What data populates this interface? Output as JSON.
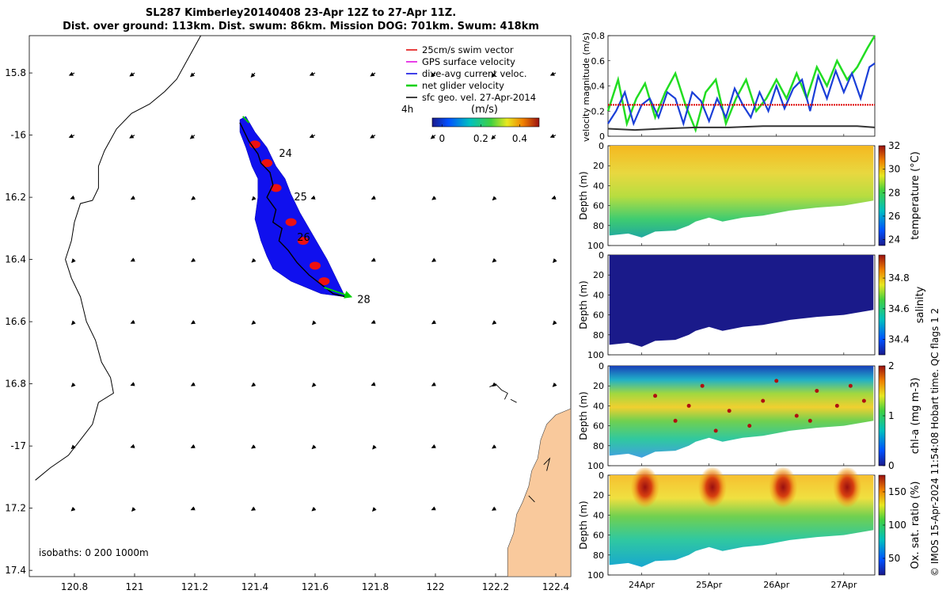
{
  "title": {
    "line1": "SL287 Kimberley20140408 23-Apr 12Z to 27-Apr 11Z.",
    "line2": "Dist. over ground: 113km. Dist. swum: 86km. Mission DOG: 701km. Swum: 418km"
  },
  "footer_vertical": "© IMOS 15-Apr-2024 11:54:08 Hobart time. QC flags 1 2",
  "chart_data": [
    {
      "type": "map",
      "name": "glider-track-map",
      "xlim": [
        120.65,
        122.45
      ],
      "ylim": [
        -17.42,
        -15.68
      ],
      "xticks": [
        120.8,
        121,
        121.2,
        121.4,
        121.6,
        121.8,
        122,
        122.2,
        122.4
      ],
      "xtick_labels": [
        "120.8",
        "121",
        "121.2",
        "121.4",
        "121.6",
        "121.8",
        "122",
        "122.2",
        "122.4"
      ],
      "yticks": [
        -15.8,
        -16,
        -16.2,
        -16.4,
        -16.6,
        -16.8,
        -17,
        -17.2,
        -17.4
      ],
      "ytick_labels": [
        "15.8",
        "-16",
        "16.2",
        "16.4",
        "16.6",
        "16.8",
        "-17",
        "17.2",
        "17.4"
      ],
      "legend": [
        {
          "label": "25cm/s swim vector",
          "color": "#e00000"
        },
        {
          "label": "GPS surface velocity",
          "color": "#e000e0"
        },
        {
          "label": "dive-avg current veloc.",
          "color": "#0000e0"
        },
        {
          "label": "net glider velocity",
          "color": "#00d000"
        },
        {
          "label": "sfc geo. vel. 27-Apr-2014",
          "color": "#000000"
        }
      ],
      "interval_label": "4h",
      "colorbar": {
        "label": "(m/s)",
        "ticks": [
          "0",
          "0.2",
          "0.4"
        ],
        "range": [
          -0.05,
          0.5
        ]
      },
      "track": [
        [
          121.35,
          -15.96
        ],
        [
          121.38,
          -16.02
        ],
        [
          121.41,
          -16.06
        ],
        [
          121.42,
          -16.09
        ],
        [
          121.45,
          -16.12
        ],
        [
          121.46,
          -16.16
        ],
        [
          121.44,
          -16.2
        ],
        [
          121.47,
          -16.24
        ],
        [
          121.46,
          -16.28
        ],
        [
          121.49,
          -16.3
        ],
        [
          121.48,
          -16.34
        ],
        [
          121.51,
          -16.37
        ],
        [
          121.54,
          -16.41
        ],
        [
          121.58,
          -16.45
        ],
        [
          121.62,
          -16.48
        ],
        [
          121.66,
          -16.51
        ],
        [
          121.7,
          -16.52
        ]
      ],
      "day_labels": [
        {
          "label": "24",
          "lon": 121.48,
          "lat": -16.07
        },
        {
          "label": "25",
          "lon": 121.53,
          "lat": -16.21
        },
        {
          "label": "26",
          "lon": 121.54,
          "lat": -16.34
        },
        {
          "label": "28",
          "lon": 121.74,
          "lat": -16.54
        }
      ],
      "coastline": [
        [
          120.67,
          -17.11
        ],
        [
          120.72,
          -17.07
        ],
        [
          120.78,
          -17.03
        ],
        [
          120.82,
          -16.98
        ],
        [
          120.86,
          -16.93
        ],
        [
          120.88,
          -16.86
        ],
        [
          120.93,
          -16.83
        ],
        [
          120.92,
          -16.78
        ],
        [
          120.89,
          -16.73
        ],
        [
          120.87,
          -16.66
        ],
        [
          120.84,
          -16.6
        ],
        [
          120.82,
          -16.52
        ],
        [
          120.79,
          -16.46
        ],
        [
          120.77,
          -16.4
        ],
        [
          120.79,
          -16.34
        ],
        [
          120.8,
          -16.28
        ],
        [
          120.82,
          -16.22
        ],
        [
          120.86,
          -16.21
        ],
        [
          120.88,
          -16.17
        ],
        [
          120.88,
          -16.1
        ],
        [
          120.9,
          -16.05
        ],
        [
          120.94,
          -15.98
        ],
        [
          120.99,
          -15.93
        ],
        [
          121.05,
          -15.9
        ],
        [
          121.1,
          -15.86
        ],
        [
          121.14,
          -15.82
        ],
        [
          121.18,
          -15.75
        ],
        [
          121.22,
          -15.68
        ]
      ],
      "isobath_label": "isobaths: 0   200  1000m"
    },
    {
      "type": "line",
      "name": "velocity-magnitude",
      "ylabel": "velocity magnitude (m/s)",
      "ylim": [
        0,
        0.8
      ],
      "yticks": [
        0,
        0.2,
        0.4,
        0.6,
        0.8
      ],
      "ytick_labels": [
        "0",
        "0.2",
        "0.4",
        "0.6",
        "0.8"
      ],
      "x_days": [
        23.5,
        27.46
      ],
      "series": [
        {
          "name": "net glider velocity",
          "color": "#22dd22",
          "t": [
            23.5,
            23.65,
            23.78,
            23.92,
            24.05,
            24.2,
            24.35,
            24.5,
            24.65,
            24.8,
            24.95,
            25.1,
            25.25,
            25.4,
            25.55,
            25.7,
            25.85,
            26.0,
            26.15,
            26.3,
            26.45,
            26.6,
            26.75,
            26.9,
            27.05,
            27.2,
            27.35,
            27.46
          ],
          "v": [
            0.2,
            0.45,
            0.1,
            0.3,
            0.42,
            0.15,
            0.35,
            0.5,
            0.25,
            0.05,
            0.35,
            0.45,
            0.1,
            0.3,
            0.45,
            0.2,
            0.3,
            0.45,
            0.3,
            0.5,
            0.3,
            0.55,
            0.4,
            0.6,
            0.45,
            0.55,
            0.7,
            0.8
          ]
        },
        {
          "name": "dive-avg current veloc.",
          "color": "#1a3fd8",
          "t": [
            23.5,
            23.62,
            23.75,
            23.88,
            24.0,
            24.12,
            24.25,
            24.38,
            24.5,
            24.62,
            24.75,
            24.88,
            25.0,
            25.12,
            25.25,
            25.38,
            25.5,
            25.62,
            25.75,
            25.88,
            26.0,
            26.12,
            26.25,
            26.38,
            26.5,
            26.62,
            26.75,
            26.88,
            27.0,
            27.12,
            27.25,
            27.38,
            27.46
          ],
          "v": [
            0.1,
            0.2,
            0.35,
            0.1,
            0.25,
            0.3,
            0.15,
            0.35,
            0.3,
            0.1,
            0.35,
            0.28,
            0.12,
            0.3,
            0.15,
            0.38,
            0.25,
            0.15,
            0.35,
            0.2,
            0.4,
            0.22,
            0.38,
            0.45,
            0.2,
            0.48,
            0.3,
            0.52,
            0.35,
            0.5,
            0.3,
            0.55,
            0.58
          ]
        },
        {
          "name": "25cm/s swim vector",
          "color": "#dd0000",
          "t": [
            23.5,
            27.46
          ],
          "v": [
            0.25,
            0.25
          ]
        },
        {
          "name": "sfc geo. vel.",
          "color": "#333333",
          "t": [
            23.5,
            23.9,
            24.3,
            24.8,
            25.3,
            25.8,
            26.3,
            26.8,
            27.2,
            27.46
          ],
          "v": [
            0.06,
            0.05,
            0.06,
            0.07,
            0.07,
            0.08,
            0.08,
            0.08,
            0.08,
            0.07
          ]
        }
      ]
    },
    {
      "type": "heatmap",
      "name": "temperature-section",
      "ylabel": "Depth (m)",
      "yticks": [
        0,
        20,
        40,
        60,
        80,
        100
      ],
      "ytick_labels": [
        "0",
        "20",
        "40",
        "60",
        "80",
        "100"
      ],
      "colorbar_label": "temperature (°C)",
      "colorbar_ticks": [
        "24",
        "26",
        "28",
        "30",
        "32"
      ],
      "range": [
        23.5,
        32
      ]
    },
    {
      "type": "heatmap",
      "name": "salinity-section",
      "ylabel": "Depth (m)",
      "yticks": [
        0,
        20,
        40,
        60,
        80,
        100
      ],
      "ytick_labels": [
        "0",
        "20",
        "40",
        "60",
        "80",
        "100"
      ],
      "colorbar_label": "salinity",
      "colorbar_ticks": [
        "34.4",
        "34.6",
        "34.8"
      ],
      "range": [
        34.3,
        34.95
      ]
    },
    {
      "type": "heatmap",
      "name": "chlorophyll-section",
      "ylabel": "Depth (m)",
      "yticks": [
        0,
        20,
        40,
        60,
        80,
        100
      ],
      "ytick_labels": [
        "0",
        "20",
        "40",
        "60",
        "80",
        "100"
      ],
      "colorbar_label": "chl-a (mg m-3)",
      "colorbar_ticks": [
        "0",
        "1",
        "2"
      ],
      "range": [
        0,
        2
      ]
    },
    {
      "type": "heatmap",
      "name": "oxygen-section",
      "ylabel": "Depth (m)",
      "yticks": [
        0,
        20,
        40,
        60,
        80,
        100
      ],
      "ytick_labels": [
        "0",
        "20",
        "40",
        "60",
        "80",
        "100"
      ],
      "colorbar_label": "Ox. sat. ratio (%)",
      "colorbar_ticks": [
        "50",
        "100",
        "150"
      ],
      "range": [
        25,
        175
      ],
      "xtick_labels": [
        "24Apr",
        "25Apr",
        "26Apr",
        "27Apr"
      ],
      "xtick_days": [
        24,
        25,
        26,
        27
      ]
    }
  ]
}
